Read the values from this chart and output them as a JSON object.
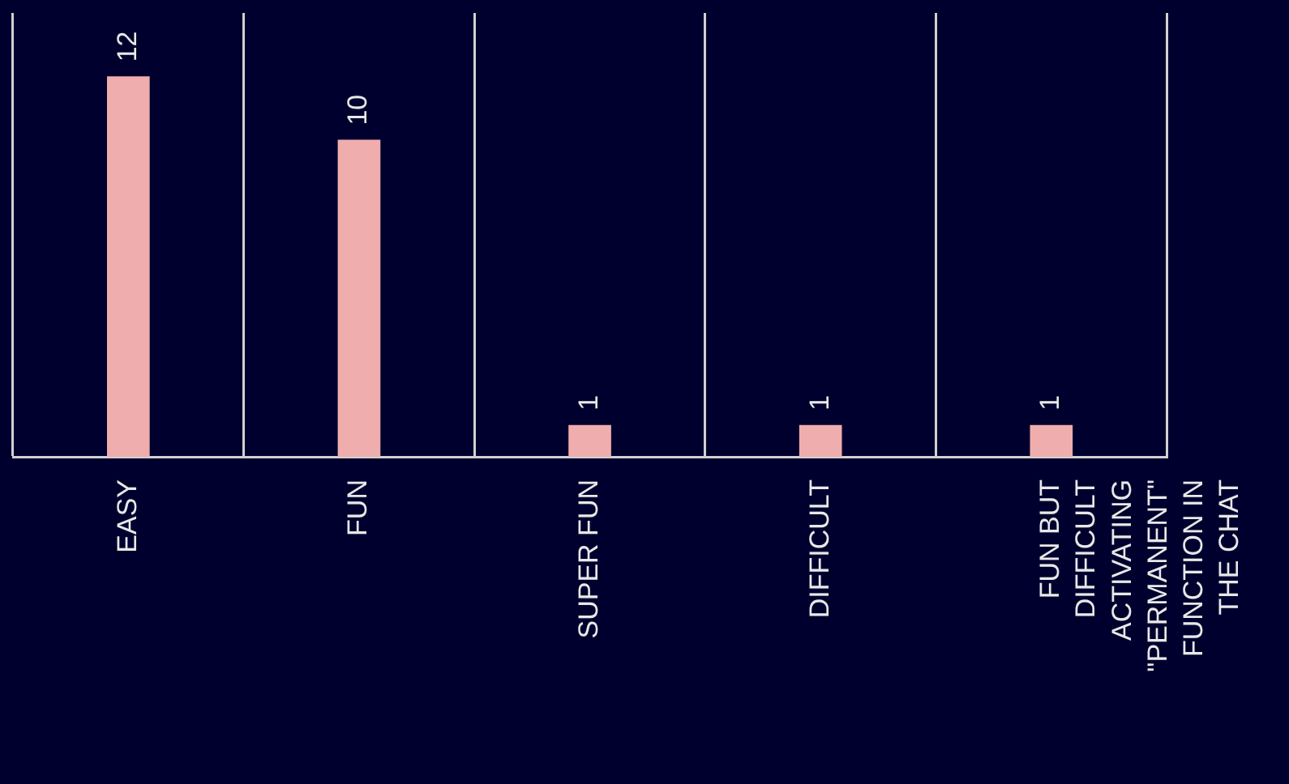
{
  "chart_data": {
    "type": "bar",
    "categories": [
      "EASY",
      "FUN",
      "SUPER FUN",
      "DIFFICULT",
      "FUN BUT DIFFICULT ACTIVATING \"PERMANENT\" FUNCTION IN THE CHAT"
    ],
    "values": [
      12,
      10,
      1,
      1,
      1
    ],
    "color": "#f0adad",
    "data_labels": true,
    "grid": "x",
    "legend": false
  }
}
